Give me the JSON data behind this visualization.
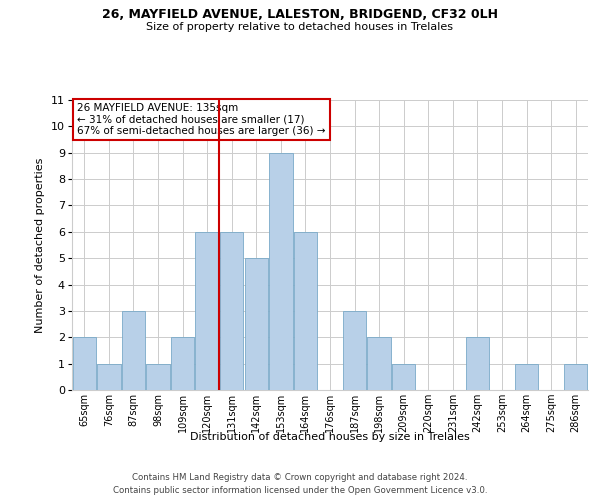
{
  "title1": "26, MAYFIELD AVENUE, LALESTON, BRIDGEND, CF32 0LH",
  "title2": "Size of property relative to detached houses in Trelales",
  "xlabel": "Distribution of detached houses by size in Trelales",
  "ylabel": "Number of detached properties",
  "bar_labels": [
    "65sqm",
    "76sqm",
    "87sqm",
    "98sqm",
    "109sqm",
    "120sqm",
    "131sqm",
    "142sqm",
    "153sqm",
    "164sqm",
    "176sqm",
    "187sqm",
    "198sqm",
    "209sqm",
    "220sqm",
    "231sqm",
    "242sqm",
    "253sqm",
    "264sqm",
    "275sqm",
    "286sqm"
  ],
  "bar_values": [
    2,
    1,
    3,
    1,
    2,
    6,
    6,
    5,
    9,
    6,
    0,
    3,
    2,
    1,
    0,
    0,
    2,
    0,
    1,
    0,
    1
  ],
  "bar_color": "#b8d0e8",
  "bar_edgecolor": "#7aaac8",
  "ylim": [
    0,
    11
  ],
  "yticks": [
    0,
    1,
    2,
    3,
    4,
    5,
    6,
    7,
    8,
    9,
    10,
    11
  ],
  "property_line_x": 5.5,
  "property_line_color": "#cc0000",
  "annotation_line1": "26 MAYFIELD AVENUE: 135sqm",
  "annotation_line2": "← 31% of detached houses are smaller (17)",
  "annotation_line3": "67% of semi-detached houses are larger (36) →",
  "annotation_box_color": "#ffffff",
  "annotation_box_edgecolor": "#cc0000",
  "footer1": "Contains HM Land Registry data © Crown copyright and database right 2024.",
  "footer2": "Contains public sector information licensed under the Open Government Licence v3.0.",
  "bg_color": "#ffffff",
  "grid_color": "#cccccc"
}
